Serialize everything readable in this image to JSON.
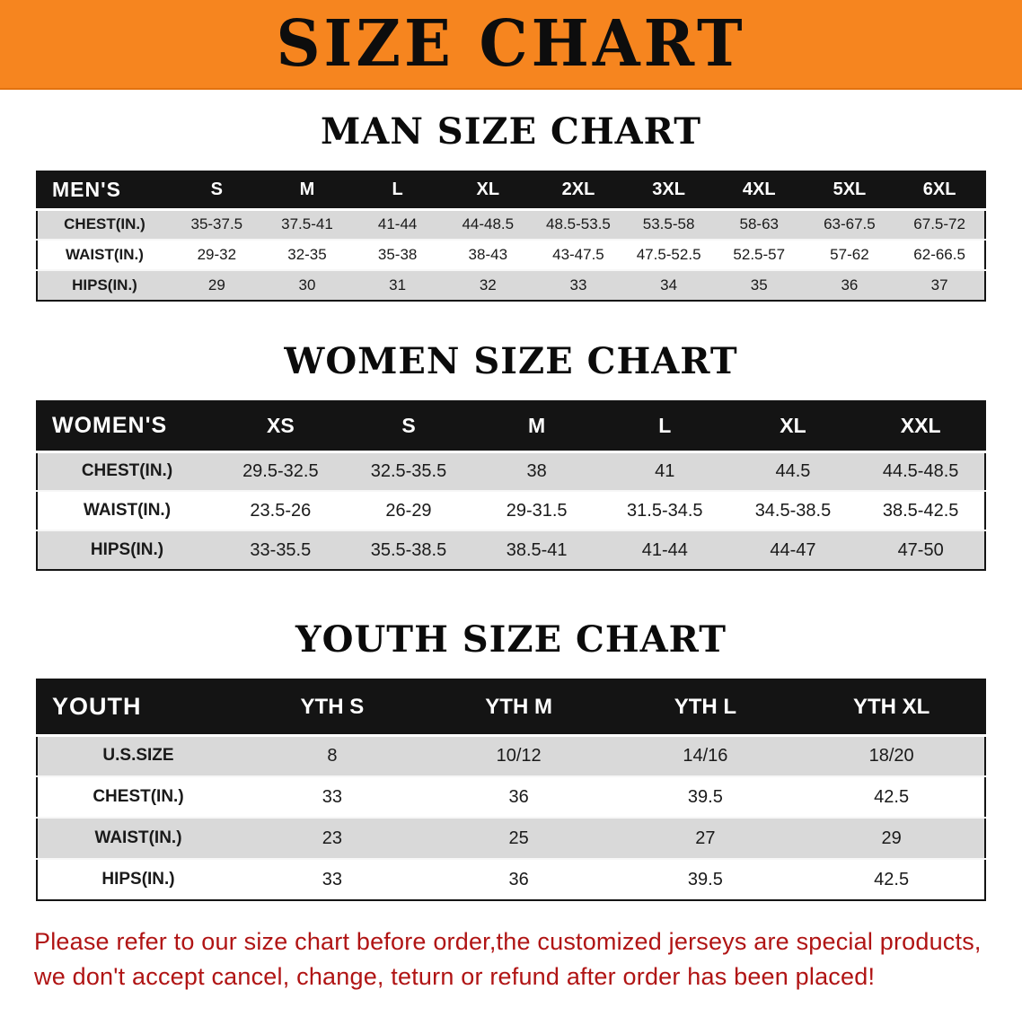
{
  "banner": {
    "title": "SIZE CHART"
  },
  "colors": {
    "banner_bg": "#f6851f",
    "table_header_bg": "#141414",
    "row_stripe": "#d9d9d9",
    "disclaimer_text": "#b01414"
  },
  "sections": [
    {
      "heading": "MAN SIZE CHART",
      "table": {
        "label": "MEN'S",
        "columns": [
          "S",
          "M",
          "L",
          "XL",
          "2XL",
          "3XL",
          "4XL",
          "5XL",
          "6XL"
        ],
        "rows": [
          {
            "label": "CHEST(IN.)",
            "values": [
              "35-37.5",
              "37.5-41",
              "41-44",
              "44-48.5",
              "48.5-53.5",
              "53.5-58",
              "58-63",
              "63-67.5",
              "67.5-72"
            ]
          },
          {
            "label": "WAIST(IN.)",
            "values": [
              "29-32",
              "32-35",
              "35-38",
              "38-43",
              "43-47.5",
              "47.5-52.5",
              "52.5-57",
              "57-62",
              "62-66.5"
            ]
          },
          {
            "label": "HIPS(IN.)",
            "values": [
              "29",
              "30",
              "31",
              "32",
              "33",
              "34",
              "35",
              "36",
              "37"
            ]
          }
        ]
      }
    },
    {
      "heading": "WOMEN SIZE CHART",
      "table": {
        "label": "WOMEN'S",
        "columns": [
          "XS",
          "S",
          "M",
          "L",
          "XL",
          "XXL"
        ],
        "rows": [
          {
            "label": "CHEST(IN.)",
            "values": [
              "29.5-32.5",
              "32.5-35.5",
              "38",
              "41",
              "44.5",
              "44.5-48.5"
            ]
          },
          {
            "label": "WAIST(IN.)",
            "values": [
              "23.5-26",
              "26-29",
              "29-31.5",
              "31.5-34.5",
              "34.5-38.5",
              "38.5-42.5"
            ]
          },
          {
            "label": "HIPS(IN.)",
            "values": [
              "33-35.5",
              "35.5-38.5",
              "38.5-41",
              "41-44",
              "44-47",
              "47-50"
            ]
          }
        ]
      }
    },
    {
      "heading": "YOUTH SIZE CHART",
      "table": {
        "label": "YOUTH",
        "columns": [
          "YTH S",
          "YTH M",
          "YTH L",
          "YTH XL"
        ],
        "rows": [
          {
            "label": "U.S.SIZE",
            "values": [
              "8",
              "10/12",
              "14/16",
              "18/20"
            ]
          },
          {
            "label": "CHEST(IN.)",
            "values": [
              "33",
              "36",
              "39.5",
              "42.5"
            ]
          },
          {
            "label": "WAIST(IN.)",
            "values": [
              "23",
              "25",
              "27",
              "29"
            ]
          },
          {
            "label": "HIPS(IN.)",
            "values": [
              "33",
              "36",
              "39.5",
              "42.5"
            ]
          }
        ]
      }
    }
  ],
  "disclaimer": {
    "line1": "Please refer to our size chart before order,the customized jerseys are special products,",
    "line2": "we don't accept cancel, change, teturn or refund after order has been placed!"
  }
}
